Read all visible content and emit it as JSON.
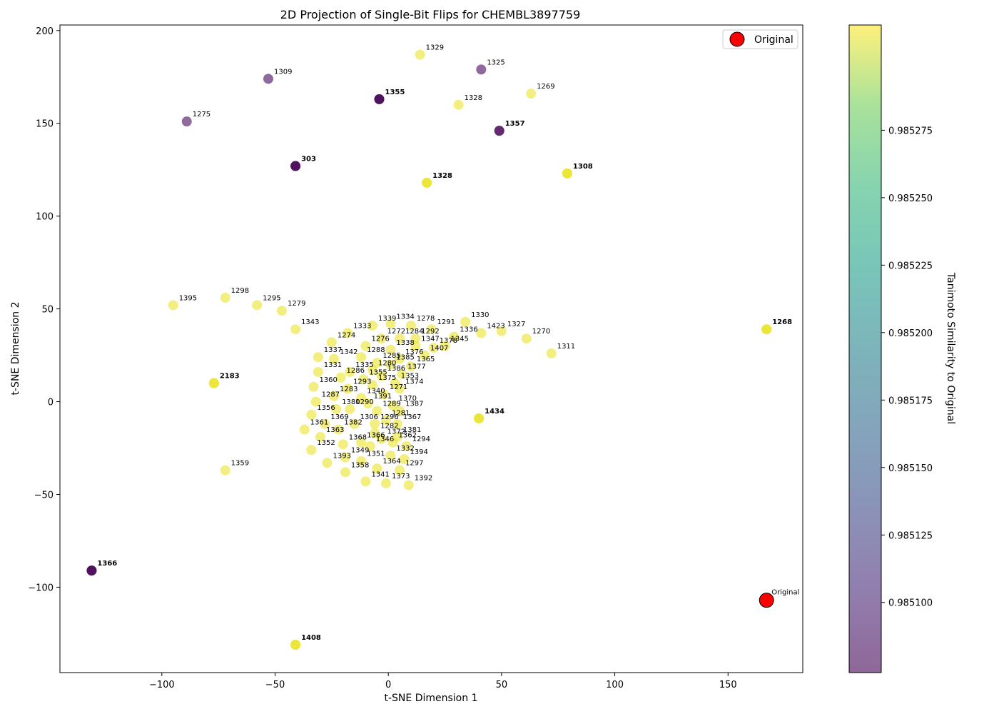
{
  "chart_data": {
    "type": "scatter",
    "title": "2D Projection of Single-Bit Flips for CHEMBL3897759",
    "xlabel": "t-SNE Dimension 1",
    "ylabel": "t-SNE Dimension 2",
    "xlim": [
      -145,
      183
    ],
    "ylim": [
      -146,
      203
    ],
    "xticks": [
      -100,
      -50,
      0,
      50,
      100,
      150
    ],
    "yticks": [
      -100,
      -50,
      0,
      50,
      100,
      150,
      200
    ],
    "xtick_labels": [
      "−100",
      "−50",
      "0",
      "50",
      "100",
      "150"
    ],
    "ytick_labels": [
      "−100",
      "−50",
      "0",
      "50",
      "100",
      "150",
      "200"
    ],
    "legend": {
      "position": "top-right",
      "label": "Original",
      "color": "#ff0000"
    },
    "colorbar": {
      "label": "Tanimoto Similarity to Original",
      "min": 0.985074,
      "max": 0.985314,
      "ticks": [
        0.9851,
        0.985125,
        0.98515,
        0.985175,
        0.9852,
        0.985225,
        0.98525,
        0.985275
      ],
      "tick_labels": [
        "0.985100",
        "0.985125",
        "0.985150",
        "0.985175",
        "0.985200",
        "0.985225",
        "0.985250",
        "0.985275"
      ],
      "colormap": "viridis"
    },
    "original": {
      "x": 167,
      "y": -107,
      "label": "Original",
      "color": "#ff0000"
    },
    "points": [
      {
        "x": 14,
        "y": 187,
        "label": "1329",
        "sim": 0.98531
      },
      {
        "x": 41,
        "y": 179,
        "label": "1325",
        "sim": 0.98508
      },
      {
        "x": -53,
        "y": 174,
        "label": "1309",
        "sim": 0.98508
      },
      {
        "x": -4,
        "y": 163,
        "label": "1355",
        "sim": 0.98507,
        "stack": 3
      },
      {
        "x": 63,
        "y": 166,
        "label": "1269",
        "sim": 0.98531
      },
      {
        "x": 31,
        "y": 160,
        "label": "1328",
        "sim": 0.98531
      },
      {
        "x": -89,
        "y": 151,
        "label": "1275",
        "sim": 0.98508
      },
      {
        "x": 49,
        "y": 146,
        "label": "1357",
        "sim": 0.98507,
        "stack": 2
      },
      {
        "x": -41,
        "y": 127,
        "label": "303",
        "sim": 0.98507,
        "stack": 3
      },
      {
        "x": 17,
        "y": 118,
        "label": "1328",
        "sim": 0.98531,
        "stack": 3
      },
      {
        "x": 79,
        "y": 123,
        "label": "1308",
        "sim": 0.98531,
        "stack": 3
      },
      {
        "x": -95,
        "y": 52,
        "label": "1395",
        "sim": 0.98531
      },
      {
        "x": -72,
        "y": 56,
        "label": "1298",
        "sim": 0.98531
      },
      {
        "x": -58,
        "y": 52,
        "label": "1295",
        "sim": 0.98531
      },
      {
        "x": -47,
        "y": 49,
        "label": "1279",
        "sim": 0.98531
      },
      {
        "x": -41,
        "y": 39,
        "label": "1343",
        "sim": 0.98531
      },
      {
        "x": 167,
        "y": 39,
        "label": "1268",
        "sim": 0.98531,
        "stack": 3
      },
      {
        "x": -77,
        "y": 10,
        "label": "2183",
        "sim": 0.98531,
        "stack": 3
      },
      {
        "x": 40,
        "y": -9,
        "label": "1434",
        "sim": 0.98531,
        "stack": 3
      },
      {
        "x": -72,
        "y": -37,
        "label": "1359",
        "sim": 0.98531
      },
      {
        "x": -131,
        "y": -91,
        "label": "1366",
        "sim": 0.98507,
        "stack": 3
      },
      {
        "x": -41,
        "y": -131,
        "label": "1408",
        "sim": 0.98531,
        "stack": 3
      },
      {
        "x": -7,
        "y": 41,
        "label": "1339",
        "sim": 0.98531
      },
      {
        "x": 1,
        "y": 42,
        "label": "1334",
        "sim": 0.98531
      },
      {
        "x": 10,
        "y": 41,
        "label": "1278",
        "sim": 0.98531
      },
      {
        "x": 19,
        "y": 39,
        "label": "1291",
        "sim": 0.98531
      },
      {
        "x": 34,
        "y": 43,
        "label": "1330",
        "sim": 0.98531
      },
      {
        "x": 29,
        "y": 35,
        "label": "1336",
        "sim": 0.98531
      },
      {
        "x": 41,
        "y": 37,
        "label": "1423",
        "sim": 0.98531
      },
      {
        "x": 50,
        "y": 38,
        "label": "1327",
        "sim": 0.98531
      },
      {
        "x": 61,
        "y": 34,
        "label": "1270",
        "sim": 0.98531
      },
      {
        "x": 72,
        "y": 26,
        "label": "1311",
        "sim": 0.98531
      },
      {
        "x": -18,
        "y": 37,
        "label": "1333",
        "sim": 0.98531
      },
      {
        "x": -3,
        "y": 34,
        "label": "1272",
        "sim": 0.98531
      },
      {
        "x": 5,
        "y": 34,
        "label": "1284",
        "sim": 0.98531
      },
      {
        "x": 12,
        "y": 34,
        "label": "1292",
        "sim": 0.98531
      },
      {
        "x": -25,
        "y": 32,
        "label": "1274",
        "sim": 0.98531
      },
      {
        "x": -10,
        "y": 30,
        "label": "1276",
        "sim": 0.98531
      },
      {
        "x": 1,
        "y": 28,
        "label": "1338",
        "sim": 0.98531
      },
      {
        "x": 12,
        "y": 30,
        "label": "1347",
        "sim": 0.98531
      },
      {
        "x": 20,
        "y": 29,
        "label": "1378",
        "sim": 0.98531
      },
      {
        "x": 25,
        "y": 30,
        "label": "1345",
        "sim": 0.98531
      },
      {
        "x": -31,
        "y": 24,
        "label": "1337",
        "sim": 0.98531
      },
      {
        "x": -24,
        "y": 23,
        "label": "1342",
        "sim": 0.98531
      },
      {
        "x": -12,
        "y": 24,
        "label": "1288",
        "sim": 0.98531
      },
      {
        "x": -5,
        "y": 21,
        "label": "1285",
        "sim": 0.98531
      },
      {
        "x": 5,
        "y": 23,
        "label": "1376",
        "sim": 0.98531
      },
      {
        "x": 10,
        "y": 19,
        "label": "1365",
        "sim": 0.98531
      },
      {
        "x": -31,
        "y": 16,
        "label": "1331",
        "sim": 0.98531
      },
      {
        "x": -17,
        "y": 16,
        "label": "1335",
        "sim": 0.98531
      },
      {
        "x": -7,
        "y": 17,
        "label": "1280",
        "sim": 0.98531
      },
      {
        "x": 1,
        "y": 20,
        "label": "1385",
        "sim": 0.98531
      },
      {
        "x": 6,
        "y": 15,
        "label": "1377",
        "sim": 0.98531
      },
      {
        "x": -21,
        "y": 13,
        "label": "1286",
        "sim": 0.98531
      },
      {
        "x": -11,
        "y": 12,
        "label": "1355",
        "sim": 0.98531
      },
      {
        "x": -3,
        "y": 14,
        "label": "1386",
        "sim": 0.98531
      },
      {
        "x": 3,
        "y": 10,
        "label": "1353",
        "sim": 0.98531
      },
      {
        "x": -33,
        "y": 8,
        "label": "1360",
        "sim": 0.98531
      },
      {
        "x": -18,
        "y": 7,
        "label": "1293",
        "sim": 0.98531
      },
      {
        "x": -7,
        "y": 9,
        "label": "1375",
        "sim": 0.98531
      },
      {
        "x": 5,
        "y": 7,
        "label": "1374",
        "sim": 0.98531
      },
      {
        "x": -24,
        "y": 3,
        "label": "1283",
        "sim": 0.98531
      },
      {
        "x": -12,
        "y": 2,
        "label": "1340",
        "sim": 0.98531
      },
      {
        "x": -2,
        "y": 4,
        "label": "1271",
        "sim": 0.98531
      },
      {
        "x": -32,
        "y": 0,
        "label": "1287",
        "sim": 0.98531
      },
      {
        "x": -9,
        "y": -1,
        "label": "1391",
        "sim": 0.98531
      },
      {
        "x": 2,
        "y": -2,
        "label": "1370",
        "sim": 0.98531
      },
      {
        "x": -23,
        "y": -4,
        "label": "1380",
        "sim": 0.98531
      },
      {
        "x": -17,
        "y": -4,
        "label": "1290",
        "sim": 0.98531
      },
      {
        "x": -5,
        "y": -5,
        "label": "1289",
        "sim": 0.98531
      },
      {
        "x": 5,
        "y": -5,
        "label": "1387",
        "sim": 0.98531
      },
      {
        "x": -34,
        "y": -7,
        "label": "1356",
        "sim": 0.98531
      },
      {
        "x": -1,
        "y": -10,
        "label": "1281",
        "sim": 0.98531
      },
      {
        "x": -28,
        "y": -12,
        "label": "1369",
        "sim": 0.98531
      },
      {
        "x": -15,
        "y": -12,
        "label": "1306",
        "sim": 0.98531
      },
      {
        "x": -6,
        "y": -12,
        "label": "1296",
        "sim": 0.98531
      },
      {
        "x": 4,
        "y": -12,
        "label": "1367",
        "sim": 0.98531
      },
      {
        "x": -37,
        "y": -15,
        "label": "1361",
        "sim": 0.98531
      },
      {
        "x": -22,
        "y": -15,
        "label": "1382",
        "sim": 0.98531
      },
      {
        "x": -6,
        "y": -17,
        "label": "1282",
        "sim": 0.98531
      },
      {
        "x": -30,
        "y": -19,
        "label": "1363",
        "sim": 0.98531
      },
      {
        "x": -12,
        "y": -22,
        "label": "1366",
        "sim": 0.98531
      },
      {
        "x": -3,
        "y": -20,
        "label": "1372",
        "sim": 0.98531
      },
      {
        "x": 4,
        "y": -19,
        "label": "1381",
        "sim": 0.98531
      },
      {
        "x": -34,
        "y": -26,
        "label": "1352",
        "sim": 0.98531
      },
      {
        "x": -20,
        "y": -23,
        "label": "1368",
        "sim": 0.98531
      },
      {
        "x": -8,
        "y": -24,
        "label": "1346",
        "sim": 0.98531
      },
      {
        "x": 2,
        "y": -22,
        "label": "1362",
        "sim": 0.98531
      },
      {
        "x": 8,
        "y": -24,
        "label": "1294",
        "sim": 0.98531
      },
      {
        "x": -27,
        "y": -33,
        "label": "1393",
        "sim": 0.98531
      },
      {
        "x": -19,
        "y": -30,
        "label": "1349",
        "sim": 0.98531
      },
      {
        "x": -12,
        "y": -32,
        "label": "1351",
        "sim": 0.98531
      },
      {
        "x": 1,
        "y": -29,
        "label": "1332",
        "sim": 0.98531
      },
      {
        "x": 7,
        "y": -31,
        "label": "1394",
        "sim": 0.98531
      },
      {
        "x": -19,
        "y": -38,
        "label": "1358",
        "sim": 0.98531
      },
      {
        "x": -5,
        "y": -36,
        "label": "1364",
        "sim": 0.98531
      },
      {
        "x": 5,
        "y": -37,
        "label": "1297",
        "sim": 0.98531
      },
      {
        "x": -10,
        "y": -43,
        "label": "1341",
        "sim": 0.98531
      },
      {
        "x": -1,
        "y": -44,
        "label": "1373",
        "sim": 0.98531
      },
      {
        "x": 9,
        "y": -45,
        "label": "1392",
        "sim": 0.98531
      },
      {
        "x": 16,
        "y": 25,
        "label": "1407",
        "sim": 0.98531
      }
    ]
  }
}
